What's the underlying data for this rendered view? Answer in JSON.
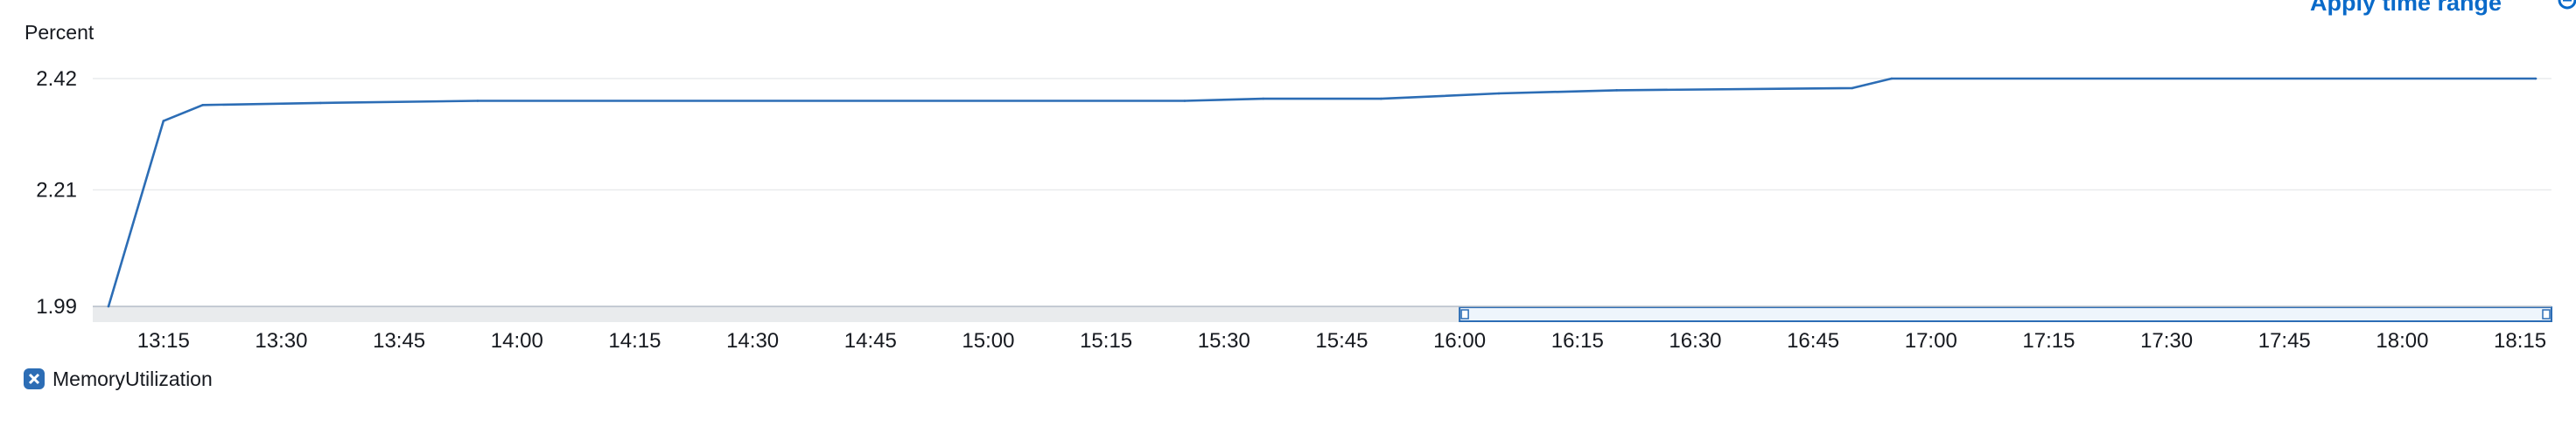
{
  "chart": {
    "unit_label": "Percent",
    "apply_time_range_label": "Apply time range",
    "legend": {
      "label": "MemoryUtilization",
      "color": "#2c6db5"
    }
  },
  "colors": {
    "series": "#2c6db5",
    "grid": "#e9ebed",
    "axis": "#b6bec9",
    "brush": "#2c6db5",
    "link": "#0a6ac9"
  },
  "icons": {
    "zoom_reset": "zoom-out-icon",
    "legend_toggle": "close-box-icon"
  },
  "chart_data": {
    "type": "line",
    "title": "",
    "xlabel": "",
    "ylabel": "Percent",
    "x_ticks": [
      "13:15",
      "13:30",
      "13:45",
      "14:00",
      "14:15",
      "14:30",
      "14:45",
      "15:00",
      "15:15",
      "15:30",
      "15:45",
      "16:00",
      "16:15",
      "16:30",
      "16:45",
      "17:00",
      "17:15",
      "17:30",
      "17:45",
      "18:00",
      "18:15"
    ],
    "y_ticks": [
      "1.99",
      "2.21",
      "2.42"
    ],
    "ylim": [
      1.99,
      2.42
    ],
    "xlim": [
      "13:06",
      "18:19"
    ],
    "grid": true,
    "legend_position": "bottom-left",
    "series": [
      {
        "name": "MemoryUtilization",
        "points": [
          {
            "x": "13:08",
            "y": 1.99
          },
          {
            "x": "13:15",
            "y": 2.34
          },
          {
            "x": "13:20",
            "y": 2.37
          },
          {
            "x": "13:35",
            "y": 2.374
          },
          {
            "x": "13:55",
            "y": 2.378
          },
          {
            "x": "15:25",
            "y": 2.378
          },
          {
            "x": "15:35",
            "y": 2.382
          },
          {
            "x": "15:50",
            "y": 2.382
          },
          {
            "x": "16:05",
            "y": 2.392
          },
          {
            "x": "16:20",
            "y": 2.398
          },
          {
            "x": "16:50",
            "y": 2.402
          },
          {
            "x": "16:55",
            "y": 2.42
          },
          {
            "x": "18:17",
            "y": 2.42
          }
        ]
      }
    ],
    "selection": {
      "from": "16:00",
      "to": "18:19"
    }
  }
}
